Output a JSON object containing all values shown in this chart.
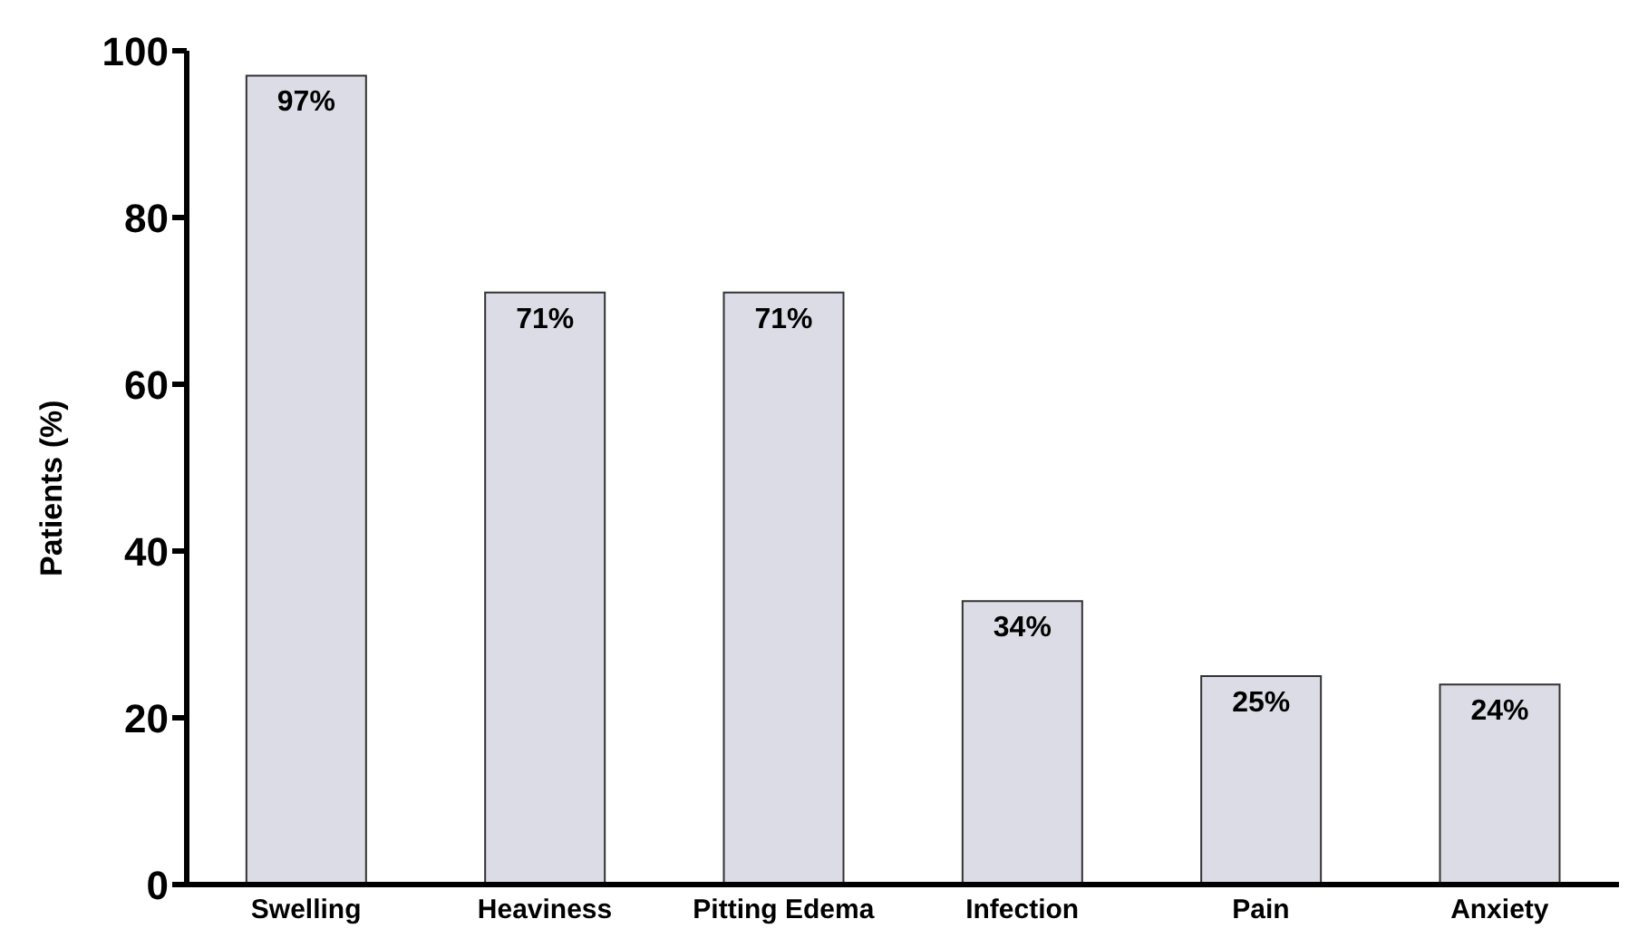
{
  "chart_data": {
    "type": "bar",
    "ylabel": "Patients (%)",
    "categories": [
      "Swelling",
      "Heaviness",
      "Pitting Edema",
      "Infection",
      "Pain",
      "Anxiety"
    ],
    "values": [
      97,
      71,
      71,
      34,
      25,
      24
    ],
    "value_labels": [
      "97%",
      "71%",
      "71%",
      "34%",
      "25%",
      "24%"
    ],
    "color": "#dcdce6",
    "ylim": [
      0,
      100
    ],
    "yticks": [
      0,
      20,
      40,
      60,
      80,
      100
    ],
    "grid": false
  }
}
